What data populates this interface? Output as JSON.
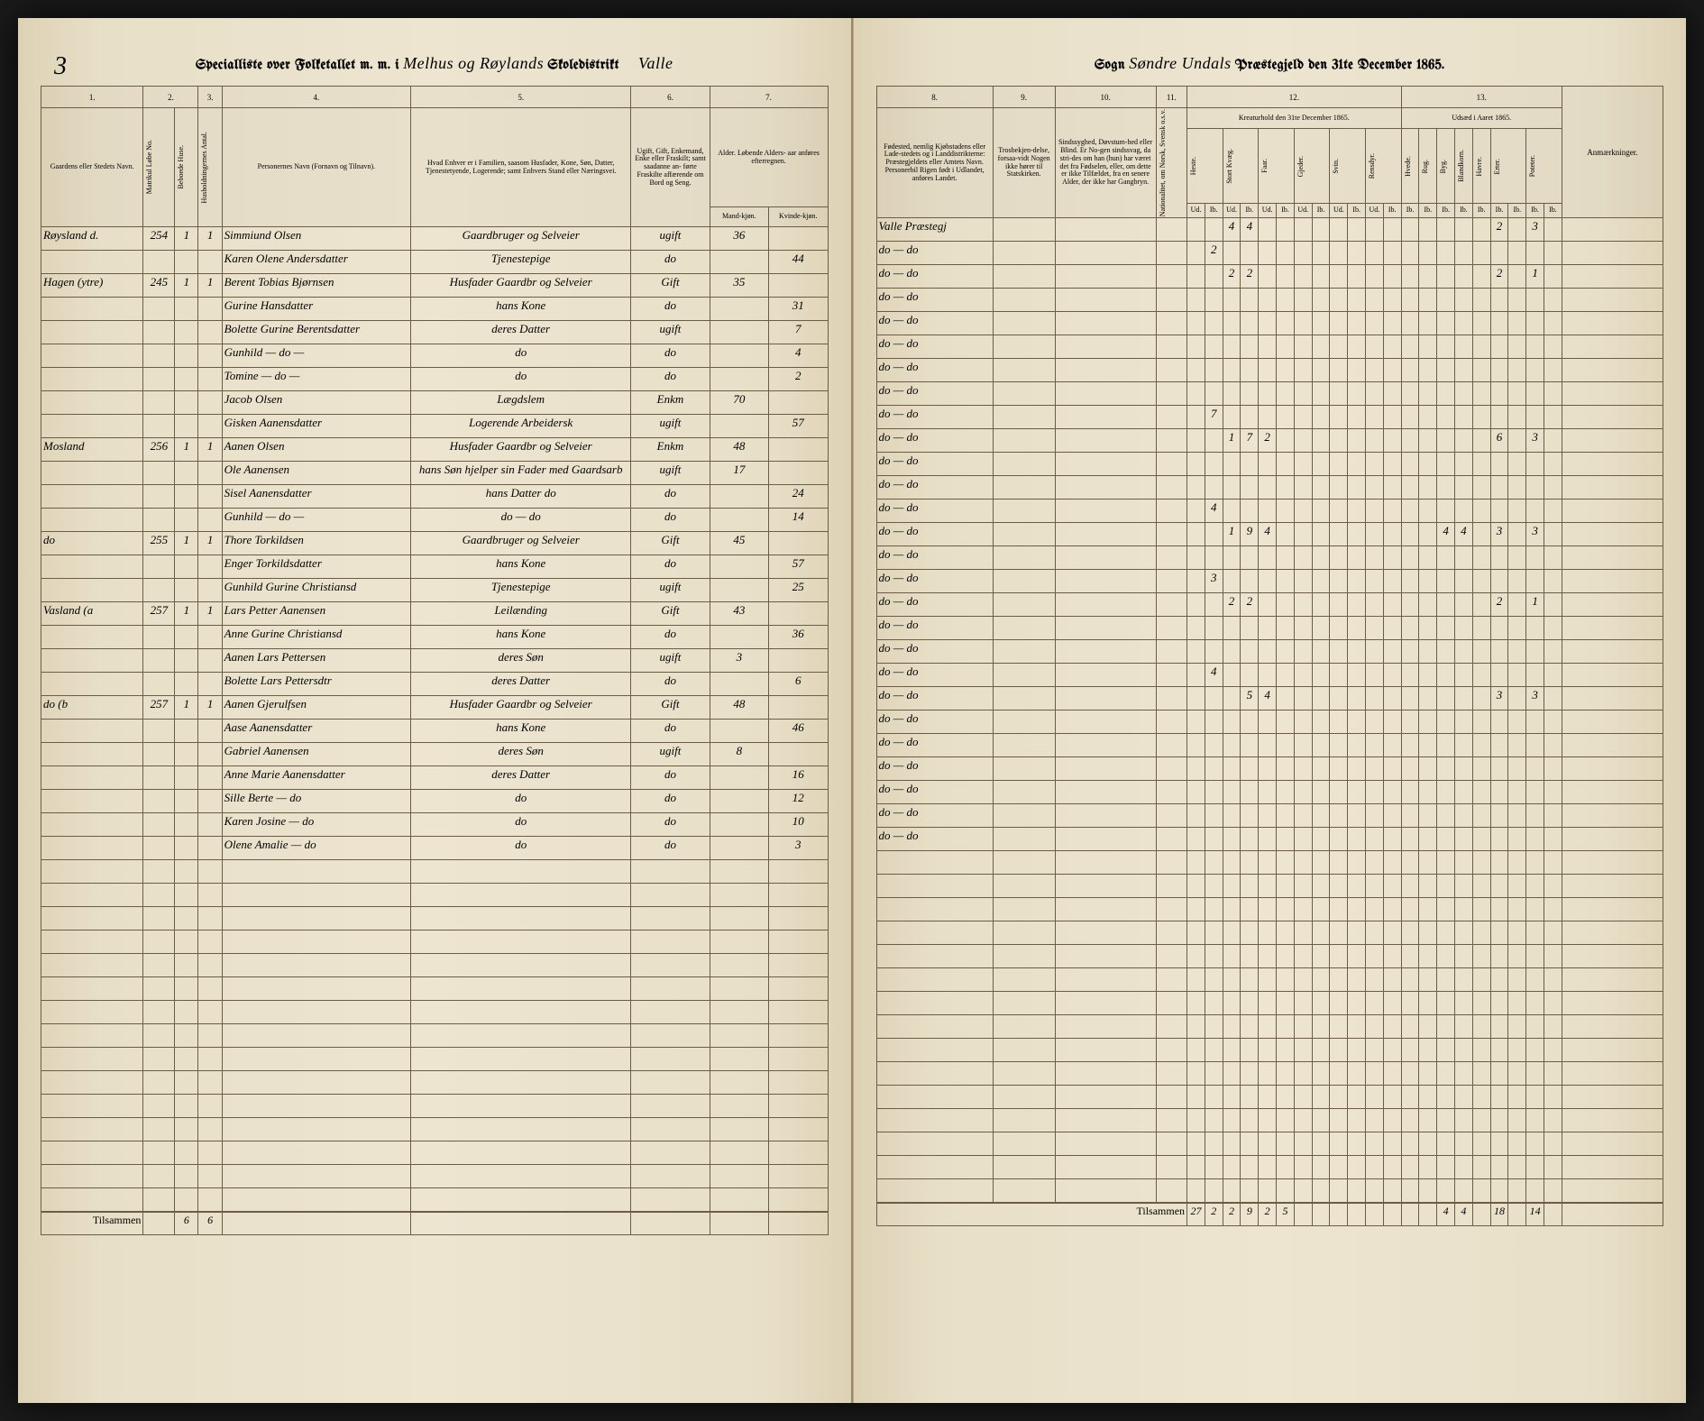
{
  "pageNumber": "3",
  "headerLeft": {
    "pre": "Specialliste over Folketallet m. m. i",
    "district": "Melhus og Røylands",
    "post": "Skoledistrikt",
    "annex": "Valle"
  },
  "headerRight": {
    "sognLabel": "Sogn",
    "sogn": "Søndre Undals",
    "post": "Præstegjeld den 31te December 1865."
  },
  "leftCols": {
    "c1": "1.",
    "c2": "2.",
    "c3": "3.",
    "c4": "4.",
    "c5": "5.",
    "c6": "6.",
    "c7": "7.",
    "h1": "Gaardens eller Stedets\nNavn.",
    "h2a": "Matrikul Løbe No.",
    "h2b": "Beboede Huse.",
    "h3": "Husholdningernes Antal.",
    "h4": "Personernes Navn (Fornavn og Tilnavn).",
    "h5": "Hvad Enhver er i Familien, saasom Husfader, Kone, Søn, Datter, Tjenestetyende, Logerende; samt\nEnhvers Stand eller Næringsvei.",
    "h6": "Ugift, Gift, Enkemand, Enke eller Fraskilt; samt saadanne an-\nførte Fraskilte affærende om Bord og Seng.",
    "h7": "Alder.\nLøbende Alders-\naar anføres efterregnen.",
    "h7a": "Mand-kjøn.",
    "h7b": "Kvinde-kjøn."
  },
  "rightCols": {
    "c8": "8.",
    "c9": "9.",
    "c10": "10.",
    "c11": "11.",
    "c12": "12.",
    "c13": "13.",
    "h8": "Fødested,\nnemlig Kjøbstadens eller Lade-stedets og i Landdistrikterne: Præstegjeldets eller Amtets Navn. Personerbil Rigen født i Udlandet, anføres Landet.",
    "h9": "Trosbekjen-delse, forsaa-vidt Nogen ikke hører til Statskirken.",
    "h10": "Sindssyghed, Døvstum-hed eller Blind. Er No-gen sindssvag, da stri-des om han (hun) har været det fra Fødselen, eller, om dette er ikke Tilfældet, fra en senere Alder, der ikke har Gangbryn.",
    "h11": "Nationalitet, om Norsk, Svensk o.s.v.",
    "h12": "Kreaturhold\nden 31te December 1865.",
    "h13": "Udsæd i\nAaret 1865.",
    "anm": "Anmærkninger.",
    "sub12": [
      "Heste.",
      "Stort Kvæg.",
      "Faar.",
      "Gjeder.",
      "Svin.",
      "Rensdyr."
    ],
    "sub13": [
      "Hvede.",
      "Rug.",
      "Byg.",
      "Blandkorn.",
      "Havre.",
      "Erter.",
      "Poteter."
    ],
    "ud": "Ud.",
    "ib": "Ib."
  },
  "rows": [
    {
      "sted": "Røysland d.",
      "mnr": "254",
      "hus": "1",
      "hh": "1",
      "navn": "Simmiund Olsen",
      "stand": "Gaardbruger og Selveier",
      "siv": "ugift",
      "m": "36",
      "k": "",
      "fod": "Valle Præstegj",
      "c12": [
        "",
        "",
        "4",
        "4",
        "",
        "",
        "",
        "",
        "",
        "",
        "",
        "",
        ""
      ],
      "c13": [
        "",
        "",
        "",
        "",
        "",
        "2",
        "",
        "3",
        ""
      ]
    },
    {
      "sted": "",
      "mnr": "",
      "hus": "",
      "hh": "",
      "navn": "Karen Olene Andersdatter",
      "stand": "Tjenestepige",
      "siv": "do",
      "m": "",
      "k": "44",
      "fod": "do — do",
      "c12": [
        "",
        "2",
        "",
        "",
        "",
        "",
        "",
        "",
        "",
        "",
        "",
        "",
        ""
      ],
      "c13": [
        "",
        "",
        "",
        "",
        "",
        "",
        "",
        "",
        ""
      ]
    },
    {
      "sted": "Hagen (ytre)",
      "mnr": "245",
      "hus": "1",
      "hh": "1",
      "navn": "Berent Tobias Bjørnsen",
      "stand": "Husfader Gaardbr og Selveier",
      "siv": "Gift",
      "m": "35",
      "k": "",
      "fod": "do — do",
      "c12": [
        "",
        "",
        "2",
        "2",
        "",
        "",
        "",
        "",
        "",
        "",
        "",
        "",
        ""
      ],
      "c13": [
        "",
        "",
        "",
        "",
        "",
        "2",
        "",
        "1",
        ""
      ]
    },
    {
      "sted": "",
      "mnr": "",
      "hus": "",
      "hh": "",
      "navn": "Gurine Hansdatter",
      "stand": "hans Kone",
      "siv": "do",
      "m": "",
      "k": "31",
      "fod": "do — do",
      "c12": [
        "",
        "",
        "",
        "",
        "",
        "",
        "",
        "",
        "",
        "",
        "",
        "",
        ""
      ],
      "c13": [
        "",
        "",
        "",
        "",
        "",
        "",
        "",
        "",
        ""
      ]
    },
    {
      "sted": "",
      "mnr": "",
      "hus": "",
      "hh": "",
      "navn": "Bolette Gurine Berentsdatter",
      "stand": "deres Datter",
      "siv": "ugift",
      "m": "",
      "k": "7",
      "fod": "do — do",
      "c12": [
        "",
        "",
        "",
        "",
        "",
        "",
        "",
        "",
        "",
        "",
        "",
        "",
        ""
      ],
      "c13": [
        "",
        "",
        "",
        "",
        "",
        "",
        "",
        "",
        ""
      ]
    },
    {
      "sted": "",
      "mnr": "",
      "hus": "",
      "hh": "",
      "navn": "Gunhild — do —",
      "stand": "do",
      "siv": "do",
      "m": "",
      "k": "4",
      "fod": "do — do",
      "c12": [
        "",
        "",
        "",
        "",
        "",
        "",
        "",
        "",
        "",
        "",
        "",
        "",
        ""
      ],
      "c13": [
        "",
        "",
        "",
        "",
        "",
        "",
        "",
        "",
        ""
      ]
    },
    {
      "sted": "",
      "mnr": "",
      "hus": "",
      "hh": "",
      "navn": "Tomine — do —",
      "stand": "do",
      "siv": "do",
      "m": "",
      "k": "2",
      "fod": "do — do",
      "c12": [
        "",
        "",
        "",
        "",
        "",
        "",
        "",
        "",
        "",
        "",
        "",
        "",
        ""
      ],
      "c13": [
        "",
        "",
        "",
        "",
        "",
        "",
        "",
        "",
        ""
      ]
    },
    {
      "sted": "",
      "mnr": "",
      "hus": "",
      "hh": "",
      "navn": "Jacob Olsen",
      "stand": "Lægdslem",
      "siv": "Enkm",
      "m": "70",
      "k": "",
      "fod": "do — do",
      "c12": [
        "",
        "",
        "",
        "",
        "",
        "",
        "",
        "",
        "",
        "",
        "",
        "",
        ""
      ],
      "c13": [
        "",
        "",
        "",
        "",
        "",
        "",
        "",
        "",
        ""
      ]
    },
    {
      "sted": "",
      "mnr": "",
      "hus": "",
      "hh": "",
      "navn": "Gisken Aanensdatter",
      "stand": "Logerende Arbeidersk",
      "siv": "ugift",
      "m": "",
      "k": "57",
      "fod": "do — do",
      "c12": [
        "",
        "7",
        "",
        "",
        "",
        "",
        "",
        "",
        "",
        "",
        "",
        "",
        ""
      ],
      "c13": [
        "",
        "",
        "",
        "",
        "",
        "",
        "",
        "",
        ""
      ]
    },
    {
      "sted": "Mosland",
      "mnr": "256",
      "hus": "1",
      "hh": "1",
      "navn": "Aanen Olsen",
      "stand": "Husfader Gaardbr og Selveier",
      "siv": "Enkm",
      "m": "48",
      "k": "",
      "fod": "do — do",
      "c12": [
        "",
        "",
        "1",
        "7",
        "2",
        "",
        "",
        "",
        "",
        "",
        "",
        "",
        ""
      ],
      "c13": [
        "",
        "",
        "",
        "",
        "",
        "6",
        "",
        "3",
        ""
      ]
    },
    {
      "sted": "",
      "mnr": "",
      "hus": "",
      "hh": "",
      "navn": "Ole Aanensen",
      "stand": "hans Søn hjelper sin Fader med Gaardsarb",
      "siv": "ugift",
      "m": "17",
      "k": "",
      "fod": "do — do",
      "c12": [
        "",
        "",
        "",
        "",
        "",
        "",
        "",
        "",
        "",
        "",
        "",
        "",
        ""
      ],
      "c13": [
        "",
        "",
        "",
        "",
        "",
        "",
        "",
        "",
        ""
      ]
    },
    {
      "sted": "",
      "mnr": "",
      "hus": "",
      "hh": "",
      "navn": "Sisel Aanensdatter",
      "stand": "hans Datter do",
      "siv": "do",
      "m": "",
      "k": "24",
      "fod": "do — do",
      "c12": [
        "",
        "",
        "",
        "",
        "",
        "",
        "",
        "",
        "",
        "",
        "",
        "",
        ""
      ],
      "c13": [
        "",
        "",
        "",
        "",
        "",
        "",
        "",
        "",
        ""
      ]
    },
    {
      "sted": "",
      "mnr": "",
      "hus": "",
      "hh": "",
      "navn": "Gunhild — do —",
      "stand": "do — do",
      "siv": "do",
      "m": "",
      "k": "14",
      "fod": "do — do",
      "c12": [
        "",
        "4",
        "",
        "",
        "",
        "",
        "",
        "",
        "",
        "",
        "",
        "",
        ""
      ],
      "c13": [
        "",
        "",
        "",
        "",
        "",
        "",
        "",
        "",
        ""
      ]
    },
    {
      "sted": "do",
      "mnr": "255",
      "hus": "1",
      "hh": "1",
      "navn": "Thore Torkildsen",
      "stand": "Gaardbruger og Selveier",
      "siv": "Gift",
      "m": "45",
      "k": "",
      "fod": "do — do",
      "c12": [
        "",
        "",
        "1",
        "9",
        "4",
        "",
        "",
        "",
        "",
        "",
        "",
        "",
        ""
      ],
      "c13": [
        "",
        "",
        "4",
        "4",
        "",
        "3",
        "",
        "3",
        ""
      ]
    },
    {
      "sted": "",
      "mnr": "",
      "hus": "",
      "hh": "",
      "navn": "Enger Torkildsdatter",
      "stand": "hans Kone",
      "siv": "do",
      "m": "",
      "k": "57",
      "fod": "do — do",
      "c12": [
        "",
        "",
        "",
        "",
        "",
        "",
        "",
        "",
        "",
        "",
        "",
        "",
        ""
      ],
      "c13": [
        "",
        "",
        "",
        "",
        "",
        "",
        "",
        "",
        ""
      ]
    },
    {
      "sted": "",
      "mnr": "",
      "hus": "",
      "hh": "",
      "navn": "Gunhild Gurine Christiansd",
      "stand": "Tjenestepige",
      "siv": "ugift",
      "m": "",
      "k": "25",
      "fod": "do — do",
      "c12": [
        "",
        "3",
        "",
        "",
        "",
        "",
        "",
        "",
        "",
        "",
        "",
        "",
        ""
      ],
      "c13": [
        "",
        "",
        "",
        "",
        "",
        "",
        "",
        "",
        ""
      ]
    },
    {
      "sted": "Vasland (a",
      "mnr": "257",
      "hus": "1",
      "hh": "1",
      "navn": "Lars Petter Aanensen",
      "stand": "Leilænding",
      "siv": "Gift",
      "m": "43",
      "k": "",
      "fod": "do — do",
      "c12": [
        "",
        "",
        "2",
        "2",
        "",
        "",
        "",
        "",
        "",
        "",
        "",
        "",
        ""
      ],
      "c13": [
        "",
        "",
        "",
        "",
        "",
        "2",
        "",
        "1",
        ""
      ]
    },
    {
      "sted": "",
      "mnr": "",
      "hus": "",
      "hh": "",
      "navn": "Anne Gurine Christiansd",
      "stand": "hans Kone",
      "siv": "do",
      "m": "",
      "k": "36",
      "fod": "do — do",
      "c12": [
        "",
        "",
        "",
        "",
        "",
        "",
        "",
        "",
        "",
        "",
        "",
        "",
        ""
      ],
      "c13": [
        "",
        "",
        "",
        "",
        "",
        "",
        "",
        "",
        ""
      ]
    },
    {
      "sted": "",
      "mnr": "",
      "hus": "",
      "hh": "",
      "navn": "Aanen Lars Pettersen",
      "stand": "deres Søn",
      "siv": "ugift",
      "m": "3",
      "k": "",
      "fod": "do — do",
      "c12": [
        "",
        "",
        "",
        "",
        "",
        "",
        "",
        "",
        "",
        "",
        "",
        "",
        ""
      ],
      "c13": [
        "",
        "",
        "",
        "",
        "",
        "",
        "",
        "",
        ""
      ]
    },
    {
      "sted": "",
      "mnr": "",
      "hus": "",
      "hh": "",
      "navn": "Bolette Lars Pettersdtr",
      "stand": "deres Datter",
      "siv": "do",
      "m": "",
      "k": "6",
      "fod": "do — do",
      "c12": [
        "",
        "4",
        "",
        "",
        "",
        "",
        "",
        "",
        "",
        "",
        "",
        "",
        ""
      ],
      "c13": [
        "",
        "",
        "",
        "",
        "",
        "",
        "",
        "",
        ""
      ]
    },
    {
      "sted": "do (b",
      "mnr": "257",
      "hus": "1",
      "hh": "1",
      "navn": "Aanen Gjerulfsen",
      "stand": "Husfader Gaardbr og Selveier",
      "siv": "Gift",
      "m": "48",
      "k": "",
      "fod": "do — do",
      "c12": [
        "",
        "",
        "",
        "5",
        "4",
        "",
        "",
        "",
        "",
        "",
        "",
        "",
        ""
      ],
      "c13": [
        "",
        "",
        "",
        "",
        "",
        "3",
        "",
        "3",
        ""
      ]
    },
    {
      "sted": "",
      "mnr": "",
      "hus": "",
      "hh": "",
      "navn": "Aase Aanensdatter",
      "stand": "hans Kone",
      "siv": "do",
      "m": "",
      "k": "46",
      "fod": "do — do",
      "c12": [
        "",
        "",
        "",
        "",
        "",
        "",
        "",
        "",
        "",
        "",
        "",
        "",
        ""
      ],
      "c13": [
        "",
        "",
        "",
        "",
        "",
        "",
        "",
        "",
        ""
      ]
    },
    {
      "sted": "",
      "mnr": "",
      "hus": "",
      "hh": "",
      "navn": "Gabriel Aanensen",
      "stand": "deres Søn",
      "siv": "ugift",
      "m": "8",
      "k": "",
      "fod": "do — do",
      "c12": [
        "",
        "",
        "",
        "",
        "",
        "",
        "",
        "",
        "",
        "",
        "",
        "",
        ""
      ],
      "c13": [
        "",
        "",
        "",
        "",
        "",
        "",
        "",
        "",
        ""
      ]
    },
    {
      "sted": "",
      "mnr": "",
      "hus": "",
      "hh": "",
      "navn": "Anne Marie Aanensdatter",
      "stand": "deres Datter",
      "siv": "do",
      "m": "",
      "k": "16",
      "fod": "do — do",
      "c12": [
        "",
        "",
        "",
        "",
        "",
        "",
        "",
        "",
        "",
        "",
        "",
        "",
        ""
      ],
      "c13": [
        "",
        "",
        "",
        "",
        "",
        "",
        "",
        "",
        ""
      ]
    },
    {
      "sted": "",
      "mnr": "",
      "hus": "",
      "hh": "",
      "navn": "Sille Berte — do",
      "stand": "do",
      "siv": "do",
      "m": "",
      "k": "12",
      "fod": "do — do",
      "c12": [
        "",
        "",
        "",
        "",
        "",
        "",
        "",
        "",
        "",
        "",
        "",
        "",
        ""
      ],
      "c13": [
        "",
        "",
        "",
        "",
        "",
        "",
        "",
        "",
        ""
      ]
    },
    {
      "sted": "",
      "mnr": "",
      "hus": "",
      "hh": "",
      "navn": "Karen Josine — do",
      "stand": "do",
      "siv": "do",
      "m": "",
      "k": "10",
      "fod": "do — do",
      "c12": [
        "",
        "",
        "",
        "",
        "",
        "",
        "",
        "",
        "",
        "",
        "",
        "",
        ""
      ],
      "c13": [
        "",
        "",
        "",
        "",
        "",
        "",
        "",
        "",
        ""
      ]
    },
    {
      "sted": "",
      "mnr": "",
      "hus": "",
      "hh": "",
      "navn": "Olene Amalie — do",
      "stand": "do",
      "siv": "do",
      "m": "",
      "k": "3",
      "fod": "do — do",
      "c12": [
        "",
        "",
        "",
        "",
        "",
        "",
        "",
        "",
        "",
        "",
        "",
        "",
        ""
      ],
      "c13": [
        "",
        "",
        "",
        "",
        "",
        "",
        "",
        "",
        ""
      ]
    }
  ],
  "blankRows": 15,
  "footerLeft": {
    "label": "Tilsammen",
    "hus": "6",
    "hh": "6"
  },
  "footerRight": {
    "label": "Tilsammen",
    "c12": [
      "27",
      "2",
      "2",
      "9",
      "2",
      "5",
      "",
      "",
      "",
      "",
      "",
      "",
      ""
    ],
    "c13": [
      "",
      "",
      "4",
      "4",
      "",
      "18",
      "",
      "14",
      ""
    ]
  }
}
